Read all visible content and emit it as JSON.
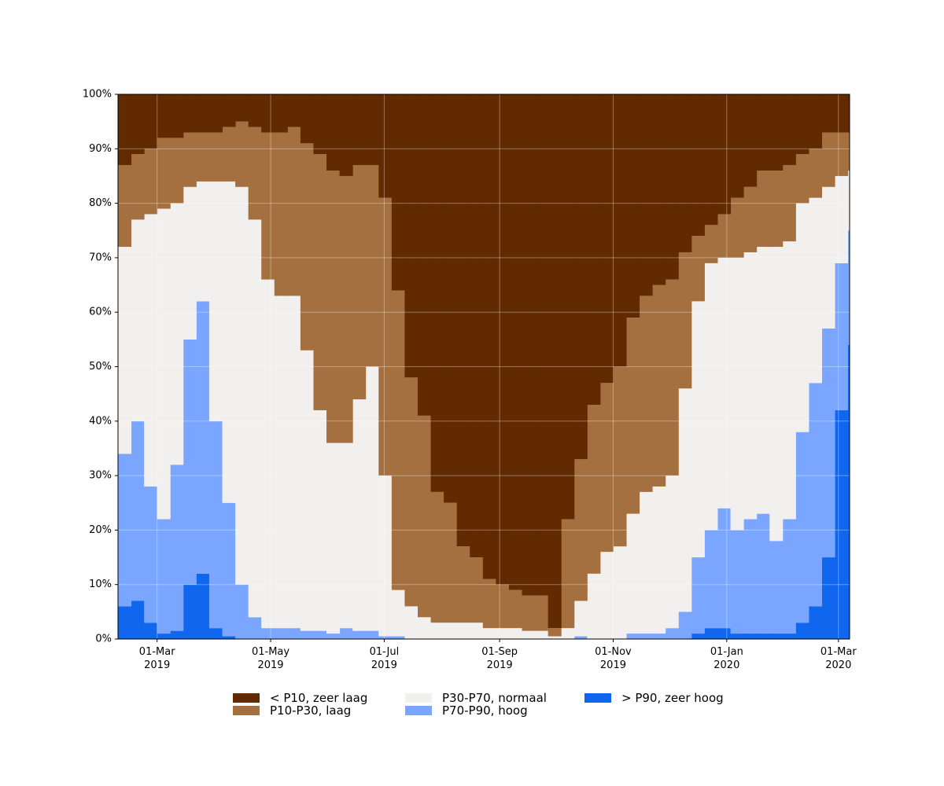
{
  "chart_data": {
    "type": "stacked-step-area",
    "x": [
      "2019-02-08",
      "2019-02-15",
      "2019-02-22",
      "2019-03-01",
      "2019-03-08",
      "2019-03-15",
      "2019-03-22",
      "2019-03-29",
      "2019-04-05",
      "2019-04-12",
      "2019-04-19",
      "2019-04-26",
      "2019-05-03",
      "2019-05-10",
      "2019-05-17",
      "2019-05-24",
      "2019-05-31",
      "2019-06-07",
      "2019-06-14",
      "2019-06-21",
      "2019-06-28",
      "2019-07-05",
      "2019-07-12",
      "2019-07-19",
      "2019-07-26",
      "2019-08-02",
      "2019-08-09",
      "2019-08-16",
      "2019-08-23",
      "2019-08-30",
      "2019-09-06",
      "2019-09-13",
      "2019-09-20",
      "2019-09-27",
      "2019-10-04",
      "2019-10-11",
      "2019-10-18",
      "2019-10-25",
      "2019-11-01",
      "2019-11-08",
      "2019-11-15",
      "2019-11-22",
      "2019-11-29",
      "2019-12-06",
      "2019-12-13",
      "2019-12-20",
      "2019-12-27",
      "2020-01-03",
      "2020-01-10",
      "2020-01-17",
      "2020-01-24",
      "2020-01-31",
      "2020-02-07",
      "2020-02-14",
      "2020-02-21",
      "2020-02-28",
      "2020-03-06"
    ],
    "series": [
      {
        "name": "< P10, zeer laag",
        "color": "#612a00",
        "values": [
          13,
          11,
          10,
          8,
          8,
          7,
          7,
          7,
          6,
          5,
          6,
          7,
          7,
          6,
          9,
          11,
          14,
          15,
          13,
          13,
          19,
          36,
          52,
          59,
          73,
          75,
          83,
          85,
          89,
          90,
          91,
          92,
          92,
          98,
          78,
          67,
          57,
          53,
          50,
          41,
          37,
          35,
          34,
          29,
          26,
          24,
          22,
          19,
          17,
          14,
          14,
          13,
          11,
          10,
          7,
          7,
          7
        ]
      },
      {
        "name": "P10-P30, laag",
        "color": "#a5703f",
        "values": [
          15,
          12,
          12,
          13,
          12,
          10,
          9,
          9,
          10,
          12,
          17,
          27,
          30,
          31,
          38,
          47,
          50,
          49,
          43,
          37,
          51,
          55,
          42,
          37,
          24,
          22,
          14,
          12,
          9,
          8,
          7,
          6.5,
          6.5,
          1.5,
          20,
          26,
          31,
          31,
          33,
          36,
          36,
          37,
          36,
          25,
          12,
          7,
          8,
          11,
          12,
          14,
          14,
          14,
          9,
          9,
          10,
          8,
          7
        ]
      },
      {
        "name": "P30-P70, normaal",
        "color": "#f2f0ef",
        "values": [
          38,
          37,
          50,
          57,
          48,
          28,
          22,
          44,
          59,
          73,
          73,
          64,
          61,
          61,
          51.5,
          40.5,
          35,
          34,
          42.5,
          48.5,
          29.5,
          8.5,
          6,
          4,
          3,
          3,
          3,
          3,
          2,
          2,
          2,
          1.5,
          1.5,
          0.5,
          2,
          6.5,
          12,
          16,
          17,
          22,
          26,
          27,
          28,
          41,
          47,
          49,
          46,
          50,
          49,
          49,
          54,
          51,
          42,
          34,
          26,
          16,
          11
        ]
      },
      {
        "name": "P70-P90, hoog",
        "color": "#7aa6ff",
        "values": [
          28,
          33,
          25,
          21,
          30.5,
          45,
          50,
          38,
          24.5,
          10,
          4,
          2,
          2,
          2,
          1.5,
          1.5,
          1,
          2,
          1.5,
          1.5,
          0.5,
          0.5,
          0,
          0,
          0,
          0,
          0,
          0,
          0,
          0,
          0,
          0,
          0,
          0,
          0,
          0.5,
          0,
          0,
          0,
          1,
          1,
          1,
          2,
          5,
          14,
          18,
          22,
          19,
          21,
          22,
          17,
          21,
          35,
          41,
          42,
          27,
          21
        ]
      },
      {
        "name": "> P90, zeer hoog",
        "color": "#1166ee",
        "values": [
          6,
          7,
          3,
          1,
          1.5,
          10,
          12,
          2,
          0.5,
          0,
          0,
          0,
          0,
          0,
          0,
          0,
          0,
          0,
          0,
          0,
          0,
          0,
          0,
          0,
          0,
          0,
          0,
          0,
          0,
          0,
          0,
          0,
          0,
          0,
          0,
          0,
          0,
          0,
          0,
          0,
          0,
          0,
          0,
          0,
          1,
          2,
          2,
          1,
          1,
          1,
          1,
          1,
          3,
          6,
          15,
          42,
          54
        ]
      }
    ],
    "xlim": [
      "2019-02-08",
      "2020-03-07"
    ],
    "xticks": [
      {
        "value": "2019-03-01",
        "label": "01-Mar\n2019"
      },
      {
        "value": "2019-05-01",
        "label": "01-May\n2019"
      },
      {
        "value": "2019-07-01",
        "label": "01-Jul\n2019"
      },
      {
        "value": "2019-09-01",
        "label": "01-Sep\n2019"
      },
      {
        "value": "2019-11-01",
        "label": "01-Nov\n2019"
      },
      {
        "value": "2020-01-01",
        "label": "01-Jan\n2020"
      },
      {
        "value": "2020-03-01",
        "label": "01-Mar\n2020"
      }
    ],
    "ylim": [
      0,
      100
    ],
    "yticks": [
      {
        "value": 0,
        "label": "0%"
      },
      {
        "value": 10,
        "label": "10%"
      },
      {
        "value": 20,
        "label": "20%"
      },
      {
        "value": 30,
        "label": "30%"
      },
      {
        "value": 40,
        "label": "40%"
      },
      {
        "value": 50,
        "label": "50%"
      },
      {
        "value": 60,
        "label": "60%"
      },
      {
        "value": 70,
        "label": "70%"
      },
      {
        "value": 80,
        "label": "80%"
      },
      {
        "value": 90,
        "label": "90%"
      },
      {
        "value": 100,
        "label": "100%"
      }
    ],
    "grid": true,
    "legend": "bottom"
  }
}
